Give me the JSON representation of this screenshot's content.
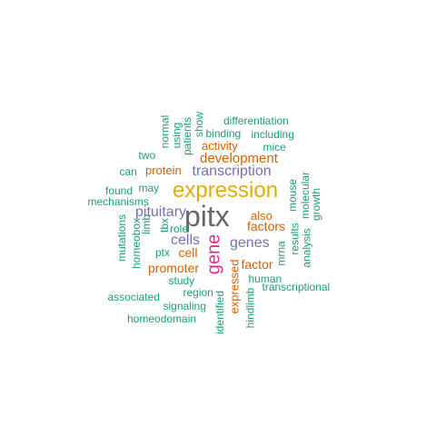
{
  "palette": {
    "green": "#1b9e77",
    "orange": "#d95f02",
    "purple": "#7570b3",
    "magenta": "#e7298a",
    "gold": "#e6ab02",
    "gray": "#666666"
  },
  "words": [
    {
      "text": "pitx",
      "color": "gray"
    },
    {
      "text": "expression",
      "color": "gold"
    },
    {
      "text": "gene",
      "color": "magenta"
    },
    {
      "text": "transcription",
      "color": "purple"
    },
    {
      "text": "development",
      "color": "orange"
    },
    {
      "text": "pituitary",
      "color": "purple"
    },
    {
      "text": "cells",
      "color": "purple"
    },
    {
      "text": "genes",
      "color": "purple"
    },
    {
      "text": "factors",
      "color": "orange"
    },
    {
      "text": "promoter",
      "color": "orange"
    },
    {
      "text": "factor",
      "color": "orange"
    },
    {
      "text": "cell",
      "color": "orange"
    },
    {
      "text": "also",
      "color": "orange"
    },
    {
      "text": "protein",
      "color": "orange"
    },
    {
      "text": "activity",
      "color": "orange"
    },
    {
      "text": "expressed",
      "color": "orange"
    },
    {
      "text": "differentiation",
      "color": "green"
    },
    {
      "text": "binding",
      "color": "green"
    },
    {
      "text": "including",
      "color": "green"
    },
    {
      "text": "mice",
      "color": "green"
    },
    {
      "text": "show",
      "color": "green"
    },
    {
      "text": "patients",
      "color": "green"
    },
    {
      "text": "using",
      "color": "green"
    },
    {
      "text": "normal",
      "color": "green"
    },
    {
      "text": "two",
      "color": "green"
    },
    {
      "text": "can",
      "color": "green"
    },
    {
      "text": "may",
      "color": "green"
    },
    {
      "text": "found",
      "color": "green"
    },
    {
      "text": "mechanisms",
      "color": "green"
    },
    {
      "text": "mouse",
      "color": "green"
    },
    {
      "text": "molecular",
      "color": "green"
    },
    {
      "text": "growth",
      "color": "green"
    },
    {
      "text": "role",
      "color": "green"
    },
    {
      "text": "tbx",
      "color": "green"
    },
    {
      "text": "limb",
      "color": "green"
    },
    {
      "text": "homeobox",
      "color": "green"
    },
    {
      "text": "mutations",
      "color": "green"
    },
    {
      "text": "ptx",
      "color": "green"
    },
    {
      "text": "results",
      "color": "green"
    },
    {
      "text": "analysis",
      "color": "green"
    },
    {
      "text": "mrna",
      "color": "green"
    },
    {
      "text": "study",
      "color": "green"
    },
    {
      "text": "region",
      "color": "green"
    },
    {
      "text": "human",
      "color": "green"
    },
    {
      "text": "transcriptional",
      "color": "green"
    },
    {
      "text": "associated",
      "color": "green"
    },
    {
      "text": "signaling",
      "color": "green"
    },
    {
      "text": "homeodomain",
      "color": "green"
    },
    {
      "text": "identified",
      "color": "green"
    },
    {
      "text": "hindlimb",
      "color": "green"
    }
  ]
}
